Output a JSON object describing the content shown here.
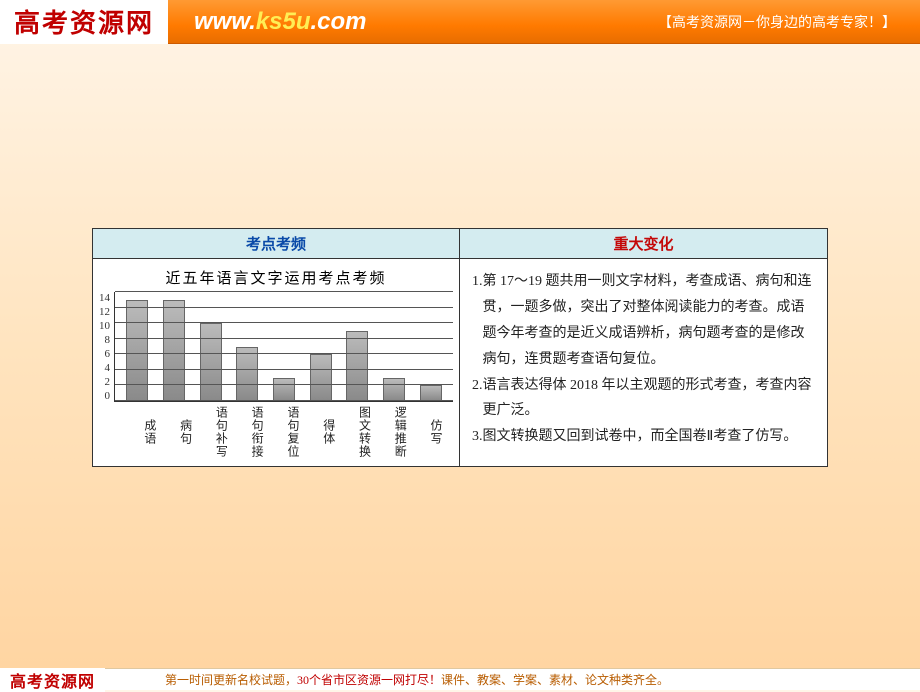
{
  "header": {
    "logo_text": "高考资源网",
    "url_pre": "www.",
    "url_mid": "ks5u",
    "url_post": ".com",
    "tagline": "【高考资源网－你身边的高考专家！】"
  },
  "table": {
    "head_left": "考点考频",
    "head_right": "重大变化"
  },
  "chart": {
    "type": "bar",
    "title": "近五年语言文字运用考点考频",
    "y_max": 14,
    "y_step": 2,
    "y_ticks": [
      "14",
      "12",
      "10",
      "8",
      "6",
      "4",
      "2",
      "0"
    ],
    "categories": [
      "成语",
      "病句",
      "语句补写",
      "语句衔接",
      "语句复位",
      "得体",
      "图文转换",
      "逻辑推断",
      "仿写"
    ],
    "values": [
      13,
      13,
      10,
      7,
      3,
      6,
      9,
      3,
      2
    ],
    "bar_color_top": "#bbbbbb",
    "bar_color_bottom": "#8a8a8a",
    "grid_color": "#555555",
    "axis_color": "#333333",
    "background_color": "#ffffff",
    "title_fontsize": 15,
    "tick_fontsize": 11,
    "label_fontsize": 12
  },
  "notes": [
    {
      "n": "1.",
      "t": "第 17～19 题共用一则文字材料，考查成语、病句和连贯，一题多做，突出了对整体阅读能力的考查。成语题今年考查的是近义成语辨析，病句题考查的是修改病句，连贯题考查语句复位。"
    },
    {
      "n": "2.",
      "t": "语言表达得体 2018 年以主观题的形式考查，考查内容更广泛。"
    },
    {
      "n": "3.",
      "t": "图文转换题又回到试卷中，而全国卷Ⅱ考查了仿写。"
    }
  ],
  "footer": {
    "logo": "高考资源网",
    "text_a": "第一时间更新名校试题，",
    "text_b": "30个省市区资源一网打尽！",
    "text_c": "课件、教案、学案、素材、论文种类齐全。"
  }
}
